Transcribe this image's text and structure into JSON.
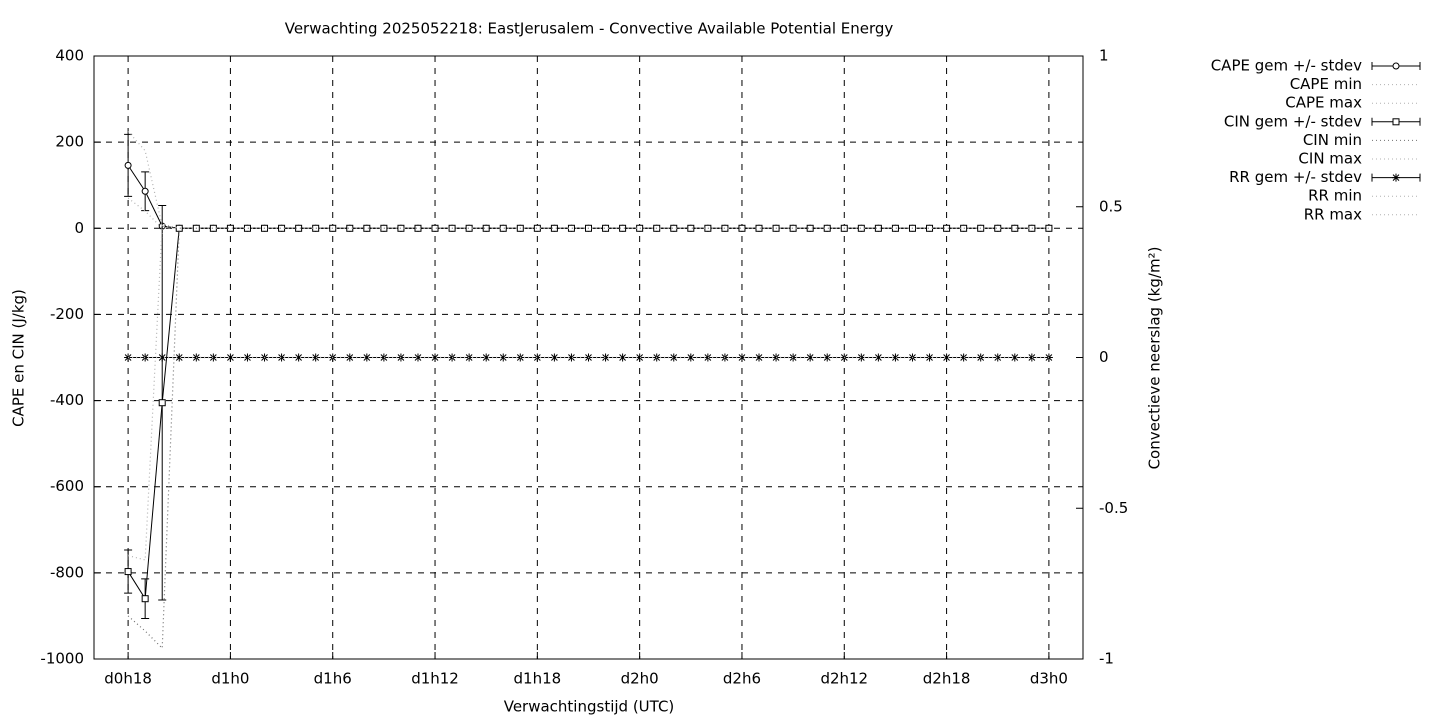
{
  "chart_data": {
    "type": "errorlines",
    "title": "Verwachting 2025052218: EastJerusalem - Convective Available Potential Energy",
    "xlabel": "Verwachtingstijd (UTC)",
    "ylabel": "CAPE en CIN (J/kg)",
    "y2label": "Convectieve neerslag (kg/m²)",
    "x": [
      18,
      19,
      20,
      21,
      22,
      23,
      24,
      25,
      26,
      27,
      28,
      29,
      30,
      31,
      32,
      33,
      34,
      35,
      36,
      37,
      38,
      39,
      40,
      41,
      42,
      43,
      44,
      45,
      46,
      47,
      48,
      49,
      50,
      51,
      52,
      53,
      54,
      55,
      56,
      57,
      58,
      59,
      60,
      61,
      62,
      63,
      64,
      65,
      66,
      67,
      68,
      69,
      70,
      71,
      72
    ],
    "xlim": [
      16,
      74
    ],
    "xticks": [
      {
        "value": 18,
        "label": "d0h18"
      },
      {
        "value": 24,
        "label": "d1h0"
      },
      {
        "value": 30,
        "label": "d1h6"
      },
      {
        "value": 36,
        "label": "d1h12"
      },
      {
        "value": 42,
        "label": "d1h18"
      },
      {
        "value": 48,
        "label": "d2h0"
      },
      {
        "value": 54,
        "label": "d2h6"
      },
      {
        "value": 60,
        "label": "d2h12"
      },
      {
        "value": 66,
        "label": "d2h18"
      },
      {
        "value": 72,
        "label": "d3h0"
      }
    ],
    "ylim": [
      -1000,
      400
    ],
    "yticks": [
      -1000,
      -800,
      -600,
      -400,
      -200,
      0,
      200,
      400
    ],
    "y2lim": [
      -1,
      1
    ],
    "y2ticks": [
      -1,
      -0.5,
      0,
      0.5,
      1
    ],
    "grid": true,
    "legend": "outside-right",
    "series": [
      {
        "name": "CAPE gem +/- stdev",
        "color": "#000000",
        "style": "errorline",
        "marker": "circle",
        "values": [
          146,
          86,
          5,
          0,
          0,
          0,
          0,
          0,
          0,
          0,
          0,
          0,
          0,
          0,
          0,
          0,
          0,
          0,
          0,
          0,
          0,
          0,
          0,
          0,
          0,
          0,
          0,
          0,
          0,
          0,
          0,
          0,
          0,
          0,
          0,
          0,
          0,
          0,
          0,
          0,
          0,
          0,
          0,
          0,
          0,
          0,
          0,
          0,
          0,
          0,
          0,
          0,
          0,
          0,
          0
        ],
        "errors": [
          72,
          45,
          0,
          0,
          0,
          0,
          0,
          0,
          0,
          0,
          0,
          0,
          0,
          0,
          0,
          0,
          0,
          0,
          0,
          0,
          0,
          0,
          0,
          0,
          0,
          0,
          0,
          0,
          0,
          0,
          0,
          0,
          0,
          0,
          0,
          0,
          0,
          0,
          0,
          0,
          0,
          0,
          0,
          0,
          0,
          0,
          0,
          0,
          0,
          0,
          0,
          0,
          0,
          0,
          0
        ]
      },
      {
        "name": "CAPE min",
        "color": "#b0b0b0",
        "style": "dotted",
        "values": [
          70,
          40,
          0,
          0,
          0,
          0,
          0,
          0,
          0,
          0,
          0,
          0,
          0,
          0,
          0,
          0,
          0,
          0,
          0,
          0,
          0,
          0,
          0,
          0,
          0,
          0,
          0,
          0,
          0,
          0,
          0,
          0,
          0,
          0,
          0,
          0,
          0,
          0,
          0,
          0,
          0,
          0,
          0,
          0,
          0,
          0,
          0,
          0,
          0,
          0,
          0,
          0,
          0,
          0,
          0
        ]
      },
      {
        "name": "CAPE max",
        "color": "#b0b0b0",
        "style": "dotted",
        "values": [
          225,
          180,
          5,
          0,
          0,
          0,
          0,
          0,
          0,
          0,
          0,
          0,
          0,
          0,
          0,
          0,
          0,
          0,
          0,
          0,
          0,
          0,
          0,
          0,
          0,
          0,
          0,
          0,
          0,
          0,
          0,
          0,
          0,
          0,
          0,
          0,
          0,
          0,
          0,
          0,
          0,
          0,
          0,
          0,
          0,
          0,
          0,
          0,
          0,
          0,
          0,
          0,
          0,
          0,
          0
        ]
      },
      {
        "name": "CIN gem +/- stdev",
        "color": "#000000",
        "style": "errorline",
        "marker": "square",
        "values": [
          -797,
          -860,
          -405,
          0,
          0,
          0,
          0,
          0,
          0,
          0,
          0,
          0,
          0,
          0,
          0,
          0,
          0,
          0,
          0,
          0,
          0,
          0,
          0,
          0,
          0,
          0,
          0,
          0,
          0,
          0,
          0,
          0,
          0,
          0,
          0,
          0,
          0,
          0,
          0,
          0,
          0,
          0,
          0,
          0,
          0,
          0,
          0,
          0,
          0,
          0,
          0,
          0,
          0,
          0,
          0
        ],
        "errors": [
          50,
          46,
          458,
          0,
          0,
          0,
          0,
          0,
          0,
          0,
          0,
          0,
          0,
          0,
          0,
          0,
          0,
          0,
          0,
          0,
          0,
          0,
          0,
          0,
          0,
          0,
          0,
          0,
          0,
          0,
          0,
          0,
          0,
          0,
          0,
          0,
          0,
          0,
          0,
          0,
          0,
          0,
          0,
          0,
          0,
          0,
          0,
          0,
          0,
          0,
          0,
          0,
          0,
          0,
          0
        ]
      },
      {
        "name": "CIN min",
        "color": "#707070",
        "style": "dotted",
        "values": [
          -900,
          -935,
          -975,
          0,
          0,
          0,
          0,
          0,
          0,
          0,
          0,
          0,
          0,
          0,
          0,
          0,
          0,
          0,
          0,
          0,
          0,
          0,
          0,
          0,
          0,
          0,
          0,
          0,
          0,
          0,
          0,
          0,
          0,
          0,
          0,
          0,
          0,
          0,
          0,
          0,
          0,
          0,
          0,
          0,
          0,
          0,
          0,
          0,
          0,
          0,
          0,
          0,
          0,
          0,
          0
        ]
      },
      {
        "name": "CIN max",
        "color": "#b0b0b0",
        "style": "dotted",
        "values": [
          -760,
          -770,
          10,
          0,
          0,
          0,
          0,
          0,
          0,
          0,
          0,
          0,
          0,
          0,
          0,
          0,
          0,
          0,
          0,
          0,
          0,
          0,
          0,
          0,
          0,
          0,
          0,
          0,
          0,
          0,
          0,
          0,
          0,
          0,
          0,
          0,
          0,
          0,
          0,
          0,
          0,
          0,
          0,
          0,
          0,
          0,
          0,
          0,
          0,
          0,
          0,
          0,
          0,
          0,
          0
        ]
      },
      {
        "name": "RR gem +/- stdev",
        "color": "#000000",
        "style": "errorline",
        "marker": "star",
        "axis": "y2",
        "values": [
          0,
          0,
          0,
          0,
          0,
          0,
          0,
          0,
          0,
          0,
          0,
          0,
          0,
          0,
          0,
          0,
          0,
          0,
          0,
          0,
          0,
          0,
          0,
          0,
          0,
          0,
          0,
          0,
          0,
          0,
          0,
          0,
          0,
          0,
          0,
          0,
          0,
          0,
          0,
          0,
          0,
          0,
          0,
          0,
          0,
          0,
          0,
          0,
          0,
          0,
          0,
          0,
          0,
          0,
          0
        ],
        "errors": [
          0,
          0,
          0,
          0,
          0,
          0,
          0,
          0,
          0,
          0,
          0,
          0,
          0,
          0,
          0,
          0,
          0,
          0,
          0,
          0,
          0,
          0,
          0,
          0,
          0,
          0,
          0,
          0,
          0,
          0,
          0,
          0,
          0,
          0,
          0,
          0,
          0,
          0,
          0,
          0,
          0,
          0,
          0,
          0,
          0,
          0,
          0,
          0,
          0,
          0,
          0,
          0,
          0,
          0,
          0
        ]
      },
      {
        "name": "RR min",
        "color": "#b0b0b0",
        "style": "dotted",
        "axis": "y2",
        "values": [
          0,
          0,
          0,
          0,
          0,
          0,
          0,
          0,
          0,
          0,
          0,
          0,
          0,
          0,
          0,
          0,
          0,
          0,
          0,
          0,
          0,
          0,
          0,
          0,
          0,
          0,
          0,
          0,
          0,
          0,
          0,
          0,
          0,
          0,
          0,
          0,
          0,
          0,
          0,
          0,
          0,
          0,
          0,
          0,
          0,
          0,
          0,
          0,
          0,
          0,
          0,
          0,
          0,
          0,
          0
        ]
      },
      {
        "name": "RR max",
        "color": "#b0b0b0",
        "style": "dotted",
        "axis": "y2",
        "values": [
          0,
          0,
          0,
          0,
          0,
          0,
          0,
          0,
          0,
          0,
          0,
          0,
          0,
          0,
          0,
          0,
          0,
          0,
          0,
          0,
          0,
          0,
          0,
          0,
          0,
          0,
          0,
          0,
          0,
          0,
          0,
          0,
          0,
          0,
          0,
          0,
          0,
          0,
          0,
          0,
          0,
          0,
          0,
          0,
          0,
          0,
          0,
          0,
          0,
          0,
          0,
          0,
          0,
          0,
          0
        ]
      }
    ]
  }
}
